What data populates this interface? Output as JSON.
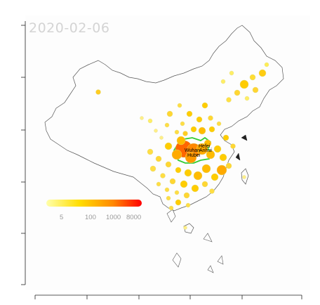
{
  "map": {
    "date": "2020-02-06",
    "highlighted_province": "Hubei",
    "neighbor_label": "Anhui",
    "city_labels": [
      "Hefei",
      "Wuhan",
      "Hubei",
      "Anhui"
    ],
    "legend": {
      "tick_labels": [
        "5",
        "100",
        "1000",
        "8000"
      ],
      "gradient_colors": [
        "#ffff99",
        "#ffcc00",
        "#ff6600",
        "#ff0000"
      ]
    },
    "colors": {
      "background": "#fdfdfd",
      "border": "#555555",
      "highlight": "#33cc33",
      "date_text": "#d4d4d4"
    }
  }
}
